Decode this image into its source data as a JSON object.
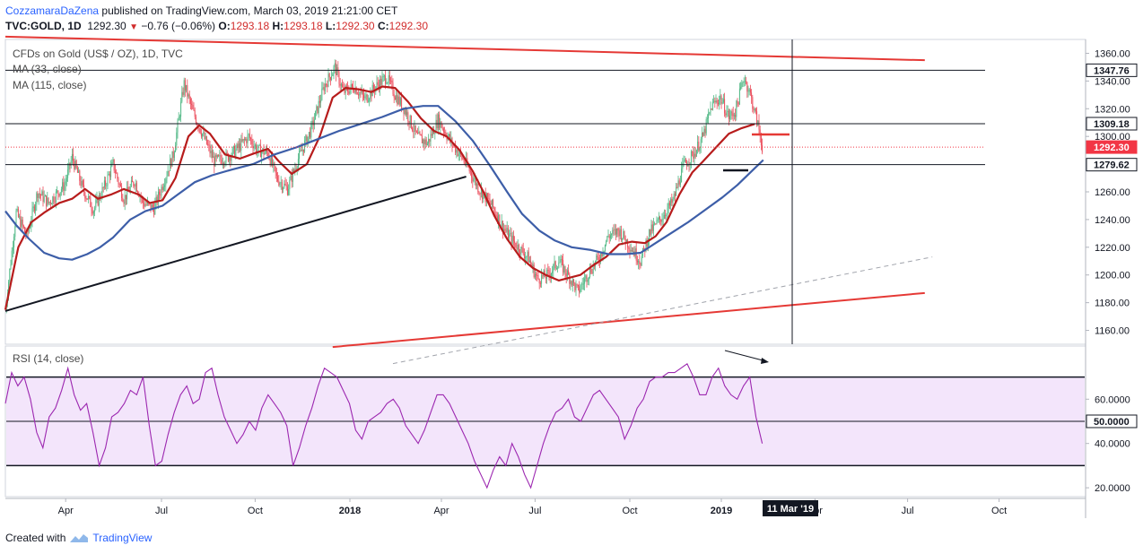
{
  "header": {
    "author": "CozzamaraDaZena",
    "published": "published on TradingView.com, March 03, 2019 21:21:00 CET",
    "symbol": "TVC:GOLD, 1D",
    "last": "1292.30",
    "change": "−0.76 (−0.06%)",
    "o_label": "O:",
    "o": "1293.18",
    "h_label": "H:",
    "h": "1293.18",
    "l_label": "L:",
    "l": "1292.30",
    "c_label": "C:",
    "c": "1292.30"
  },
  "legend": {
    "title": "CFDs on Gold (US$ / OZ), 1D, TVC",
    "ma33": "MA (33, close)",
    "ma115": "MA (115, close)",
    "rsi": "RSI (14, close)"
  },
  "footer": {
    "created": "Created with",
    "brand": "TradingView"
  },
  "colors": {
    "up": "#53b987",
    "down": "#eb4d5c",
    "ma33": "#b71c1c",
    "ma115": "#3d5ea8",
    "trend_red": "#e53935",
    "rsi": "#9c27b0",
    "rsi_band": "#f3e5fb",
    "last_price": "#f23645"
  },
  "chart_data": [
    {
      "type": "candlestick",
      "title": "CFDs on Gold (US$ / OZ), 1D, TVC",
      "ylim": [
        1150,
        1370
      ],
      "y_ticks": [
        "1160.00",
        "1180.00",
        "1200.00",
        "1220.00",
        "1240.00",
        "1260.00",
        "1280.00",
        "1300.00",
        "1320.00",
        "1340.00",
        "1360.00"
      ],
      "price_labels": [
        {
          "text": "1347.76",
          "value": 1347.76,
          "style": "dark"
        },
        {
          "text": "1309.18",
          "value": 1309.18,
          "style": "dark"
        },
        {
          "text": "1292.30",
          "value": 1292.3,
          "style": "red"
        },
        {
          "text": "1279.62",
          "value": 1279.62,
          "style": "dark"
        }
      ],
      "x_ticks": [
        "Apr",
        "Jul",
        "Oct",
        "2018",
        "Apr",
        "Jul",
        "Oct",
        "2019",
        "Apr",
        "Jul",
        "Oct"
      ],
      "x_bold": [
        "2018",
        "2019"
      ],
      "cursor_label": "11 Mar '19",
      "price_path": [
        [
          0,
          1175
        ],
        [
          10,
          1245
        ],
        [
          20,
          1228
        ],
        [
          30,
          1260
        ],
        [
          40,
          1252
        ],
        [
          55,
          1265
        ],
        [
          62,
          1285
        ],
        [
          72,
          1262
        ],
        [
          82,
          1247
        ],
        [
          92,
          1264
        ],
        [
          100,
          1280
        ],
        [
          110,
          1255
        ],
        [
          120,
          1268
        ],
        [
          128,
          1252
        ],
        [
          138,
          1248
        ],
        [
          146,
          1265
        ],
        [
          156,
          1287
        ],
        [
          166,
          1338
        ],
        [
          174,
          1318
        ],
        [
          184,
          1300
        ],
        [
          194,
          1282
        ],
        [
          206,
          1285
        ],
        [
          214,
          1290
        ],
        [
          226,
          1300
        ],
        [
          234,
          1290
        ],
        [
          244,
          1288
        ],
        [
          252,
          1270
        ],
        [
          262,
          1262
        ],
        [
          272,
          1284
        ],
        [
          284,
          1305
        ],
        [
          296,
          1336
        ],
        [
          306,
          1350
        ],
        [
          314,
          1332
        ],
        [
          324,
          1336
        ],
        [
          334,
          1327
        ],
        [
          344,
          1336
        ],
        [
          354,
          1343
        ],
        [
          362,
          1330
        ],
        [
          372,
          1318
        ],
        [
          382,
          1300
        ],
        [
          392,
          1295
        ],
        [
          402,
          1312
        ],
        [
          414,
          1296
        ],
        [
          428,
          1280
        ],
        [
          440,
          1262
        ],
        [
          452,
          1250
        ],
        [
          464,
          1232
        ],
        [
          474,
          1222
        ],
        [
          486,
          1212
        ],
        [
          494,
          1197
        ],
        [
          504,
          1200
        ],
        [
          514,
          1210
        ],
        [
          524,
          1198
        ],
        [
          532,
          1188
        ],
        [
          542,
          1202
        ],
        [
          552,
          1213
        ],
        [
          560,
          1228
        ],
        [
          570,
          1232
        ],
        [
          580,
          1221
        ],
        [
          590,
          1210
        ],
        [
          598,
          1230
        ],
        [
          608,
          1240
        ],
        [
          620,
          1253
        ],
        [
          630,
          1279
        ],
        [
          640,
          1288
        ],
        [
          648,
          1300
        ],
        [
          656,
          1322
        ],
        [
          664,
          1328
        ],
        [
          672,
          1314
        ],
        [
          678,
          1318
        ],
        [
          686,
          1343
        ],
        [
          692,
          1330
        ],
        [
          700,
          1305
        ],
        [
          703,
          1292.3
        ]
      ],
      "series": [
        {
          "name": "MA (33, close)",
          "path": [
            [
              0,
              1175
            ],
            [
              12,
              1220
            ],
            [
              24,
              1238
            ],
            [
              36,
              1245
            ],
            [
              50,
              1252
            ],
            [
              62,
              1255
            ],
            [
              74,
              1262
            ],
            [
              86,
              1255
            ],
            [
              98,
              1258
            ],
            [
              110,
              1262
            ],
            [
              124,
              1258
            ],
            [
              134,
              1252
            ],
            [
              146,
              1254
            ],
            [
              158,
              1270
            ],
            [
              170,
              1300
            ],
            [
              180,
              1308
            ],
            [
              190,
              1302
            ],
            [
              204,
              1287
            ],
            [
              218,
              1284
            ],
            [
              232,
              1288
            ],
            [
              244,
              1291
            ],
            [
              254,
              1282
            ],
            [
              266,
              1273
            ],
            [
              280,
              1280
            ],
            [
              292,
              1300
            ],
            [
              304,
              1328
            ],
            [
              316,
              1335
            ],
            [
              328,
              1334
            ],
            [
              340,
              1332
            ],
            [
              350,
              1336
            ],
            [
              362,
              1335
            ],
            [
              374,
              1325
            ],
            [
              386,
              1313
            ],
            [
              398,
              1304
            ],
            [
              410,
              1300
            ],
            [
              422,
              1290
            ],
            [
              434,
              1275
            ],
            [
              444,
              1260
            ],
            [
              454,
              1243
            ],
            [
              466,
              1226
            ],
            [
              478,
              1213
            ],
            [
              490,
              1205
            ],
            [
              502,
              1200
            ],
            [
              514,
              1196
            ],
            [
              524,
              1198
            ],
            [
              534,
              1200
            ],
            [
              546,
              1207
            ],
            [
              558,
              1213
            ],
            [
              570,
              1222
            ],
            [
              582,
              1224
            ],
            [
              594,
              1223
            ],
            [
              604,
              1228
            ],
            [
              614,
              1238
            ],
            [
              626,
              1258
            ],
            [
              638,
              1274
            ],
            [
              648,
              1282
            ],
            [
              660,
              1292
            ],
            [
              672,
              1302
            ],
            [
              684,
              1306
            ],
            [
              696,
              1309
            ]
          ]
        },
        {
          "name": "MA (115, close)",
          "path": [
            [
              0,
              1246
            ],
            [
              10,
              1236
            ],
            [
              22,
              1226
            ],
            [
              36,
              1216
            ],
            [
              50,
              1212
            ],
            [
              62,
              1211
            ],
            [
              76,
              1215
            ],
            [
              88,
              1220
            ],
            [
              100,
              1227
            ],
            [
              116,
              1240
            ],
            [
              130,
              1246
            ],
            [
              146,
              1250
            ],
            [
              160,
              1258
            ],
            [
              176,
              1267
            ],
            [
              192,
              1272
            ],
            [
              210,
              1276
            ],
            [
              230,
              1280
            ],
            [
              250,
              1287
            ],
            [
              270,
              1292
            ],
            [
              290,
              1298
            ],
            [
              310,
              1304
            ],
            [
              330,
              1309
            ],
            [
              350,
              1314
            ],
            [
              370,
              1320
            ],
            [
              388,
              1322
            ],
            [
              402,
              1322
            ],
            [
              418,
              1311
            ],
            [
              434,
              1297
            ],
            [
              450,
              1279
            ],
            [
              466,
              1260
            ],
            [
              480,
              1244
            ],
            [
              496,
              1232
            ],
            [
              510,
              1225
            ],
            [
              526,
              1220
            ],
            [
              544,
              1218
            ],
            [
              560,
              1215
            ],
            [
              576,
              1215
            ],
            [
              590,
              1216
            ],
            [
              606,
              1224
            ],
            [
              620,
              1231
            ],
            [
              634,
              1238
            ],
            [
              650,
              1247
            ],
            [
              666,
              1256
            ],
            [
              680,
              1265
            ],
            [
              696,
              1277
            ],
            [
              704,
              1283
            ]
          ]
        }
      ],
      "lines": [
        {
          "name": "upper-red-trendline",
          "from": [
            0,
            1372
          ],
          "to": [
            854,
            1355
          ]
        },
        {
          "name": "lower-red-trendline",
          "from": [
            304,
            1148
          ],
          "to": [
            854,
            1187
          ]
        },
        {
          "name": "black-support-trendline",
          "from": [
            0,
            1174
          ],
          "to": [
            428,
            1271
          ]
        },
        {
          "name": "dashed-channel-line",
          "from": [
            360,
            1136
          ],
          "to": [
            861,
            1213
          ]
        },
        {
          "name": "resistance-1347",
          "from": [
            0,
            1347.76
          ],
          "to": [
            910,
            1347.76
          ]
        },
        {
          "name": "resistance-1309",
          "from": [
            0,
            1309.18
          ],
          "to": [
            910,
            1309.18
          ]
        },
        {
          "name": "support-1279",
          "from": [
            0,
            1279.62
          ],
          "to": [
            910,
            1279.62
          ]
        },
        {
          "name": "last-price-1292",
          "from": [
            0,
            1292.3
          ],
          "to": [
            910,
            1292.3
          ]
        }
      ]
    },
    {
      "type": "line",
      "title": "RSI (14, close)",
      "ylim": [
        16,
        84
      ],
      "y_ticks": [
        "20.0000",
        "40.0000",
        "60.0000"
      ],
      "mid_label": "50.0000",
      "band": [
        30,
        70
      ],
      "values": [
        58,
        72,
        66,
        70,
        60,
        45,
        38,
        52,
        56,
        64,
        74,
        62,
        55,
        58,
        45,
        30,
        38,
        52,
        54,
        58,
        64,
        62,
        70,
        48,
        30,
        32,
        44,
        54,
        62,
        66,
        58,
        60,
        72,
        74,
        62,
        52,
        46,
        40,
        44,
        50,
        46,
        56,
        62,
        58,
        54,
        48,
        30,
        38,
        48,
        56,
        66,
        74,
        72,
        70,
        64,
        58,
        46,
        42,
        50,
        52,
        54,
        58,
        60,
        56,
        48,
        44,
        40,
        46,
        54,
        62,
        62,
        58,
        52,
        46,
        40,
        32,
        26,
        20,
        28,
        34,
        30,
        40,
        34,
        26,
        20,
        30,
        40,
        48,
        54,
        56,
        60,
        52,
        50,
        56,
        62,
        64,
        60,
        56,
        52,
        42,
        48,
        56,
        60,
        68,
        70,
        70,
        72,
        72,
        74,
        76,
        70,
        62,
        62,
        70,
        74,
        66,
        62,
        60,
        66,
        70,
        52,
        40
      ]
    }
  ]
}
